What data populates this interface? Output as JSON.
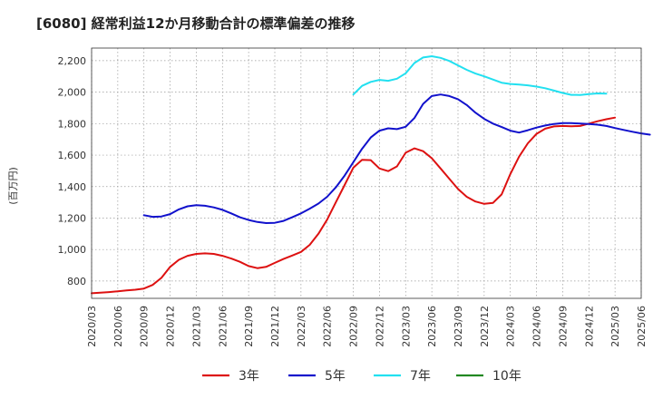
{
  "chart_data": {
    "type": "line",
    "title": "[6080]  経常利益12か月移動合計の標準偏差の推移",
    "ylabel": "(百万円)",
    "xlabel": "",
    "ylim": [
      690,
      2280
    ],
    "yticks": [
      800,
      1000,
      1200,
      1400,
      1600,
      1800,
      2000,
      2200
    ],
    "ytick_labels": [
      "800",
      "1,000",
      "1,200",
      "1,400",
      "1,600",
      "1,800",
      "2,000",
      "2,200"
    ],
    "xticks": [
      "2020/03",
      "2020/06",
      "2020/09",
      "2020/12",
      "2021/03",
      "2021/06",
      "2021/09",
      "2021/12",
      "2022/03",
      "2022/06",
      "2022/09",
      "2022/12",
      "2023/03",
      "2023/06",
      "2023/09",
      "2023/12",
      "2024/03",
      "2024/06",
      "2024/09",
      "2024/12",
      "2025/03",
      "2025/06"
    ],
    "grid": true,
    "legend_position": "bottom",
    "series": [
      {
        "name": "3年",
        "color": "#dd1111",
        "start": "2020/03",
        "values": [
          722,
          726,
          730,
          735,
          740,
          745,
          752,
          775,
          820,
          890,
          935,
          960,
          972,
          976,
          972,
          960,
          943,
          922,
          895,
          882,
          890,
          915,
          940,
          962,
          985,
          1030,
          1100,
          1190,
          1300,
          1410,
          1520,
          1570,
          1568,
          1515,
          1498,
          1528,
          1615,
          1643,
          1625,
          1580,
          1515,
          1450,
          1385,
          1335,
          1305,
          1290,
          1296,
          1350,
          1480,
          1590,
          1675,
          1735,
          1768,
          1782,
          1785,
          1783,
          1785,
          1800,
          1815,
          1828,
          1838
        ]
      },
      {
        "name": "5年",
        "color": "#1111cc",
        "start": "2020/09",
        "values": [
          1218,
          1208,
          1210,
          1225,
          1255,
          1275,
          1282,
          1278,
          1268,
          1252,
          1230,
          1205,
          1188,
          1175,
          1168,
          1170,
          1182,
          1205,
          1230,
          1260,
          1292,
          1335,
          1395,
          1470,
          1555,
          1640,
          1712,
          1755,
          1770,
          1765,
          1780,
          1835,
          1925,
          1975,
          1985,
          1975,
          1955,
          1918,
          1870,
          1830,
          1800,
          1778,
          1755,
          1743,
          1758,
          1775,
          1788,
          1798,
          1803,
          1803,
          1800,
          1798,
          1793,
          1785,
          1772,
          1760,
          1748,
          1738,
          1730
        ]
      },
      {
        "name": "7年",
        "color": "#22e0f0",
        "start": "2022/09",
        "values": [
          1985,
          2040,
          2065,
          2078,
          2072,
          2085,
          2120,
          2185,
          2220,
          2228,
          2218,
          2198,
          2170,
          2142,
          2118,
          2100,
          2080,
          2060,
          2052,
          2048,
          2043,
          2035,
          2025,
          2010,
          1995,
          1983,
          1982,
          1988,
          1992,
          1990
        ]
      },
      {
        "name": "10年",
        "color": "#228822",
        "start": "",
        "values": []
      }
    ]
  }
}
